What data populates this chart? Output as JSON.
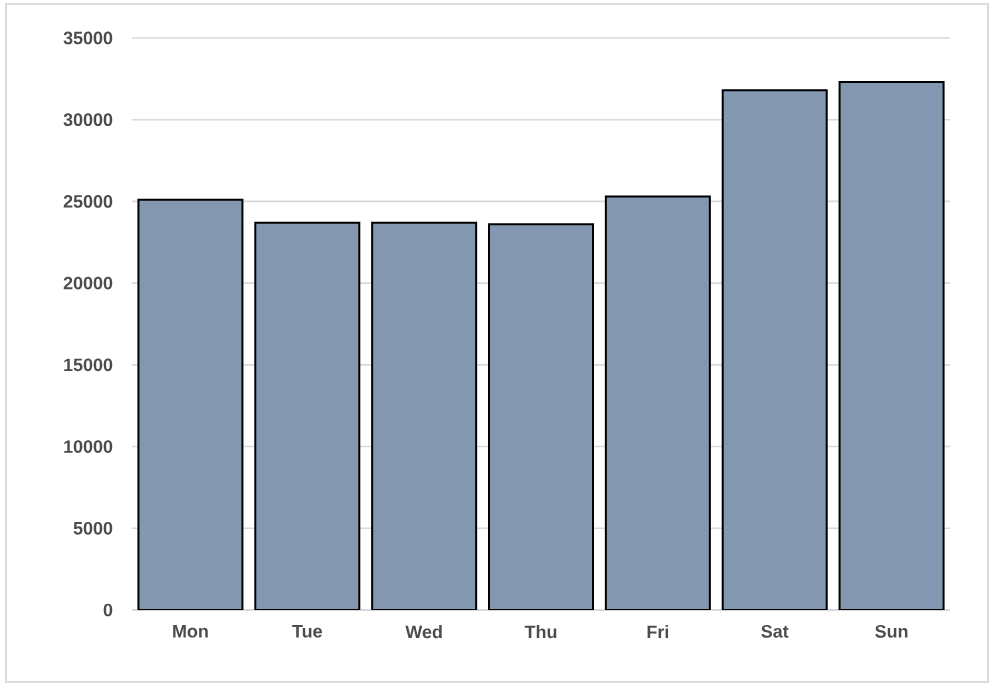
{
  "chart_data": {
    "type": "bar",
    "categories": [
      "Mon",
      "Tue",
      "Wed",
      "Thu",
      "Fri",
      "Sat",
      "Sun"
    ],
    "values": [
      25100,
      23700,
      23700,
      23600,
      25300,
      31800,
      32300
    ],
    "color": "#8497b0",
    "ylim": [
      0,
      35000
    ],
    "yticks": [
      0,
      5000,
      10000,
      15000,
      20000,
      25000,
      30000,
      35000
    ],
    "grid": "y"
  }
}
